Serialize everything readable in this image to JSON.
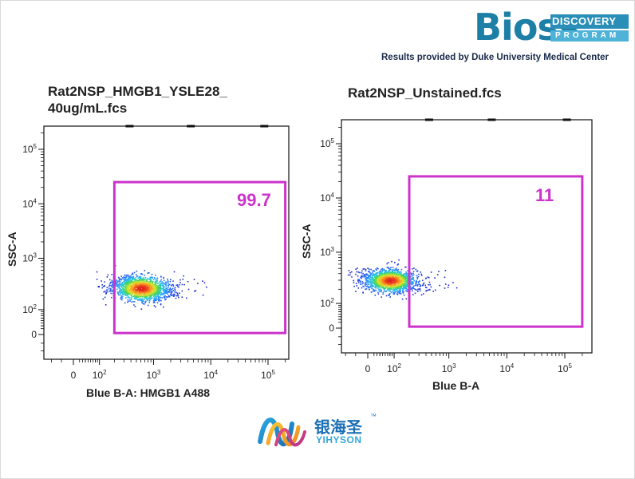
{
  "branding": {
    "bioss": {
      "word": "Bioss",
      "line1": "DISCOVERY",
      "line2": "PROGRAM",
      "colors": {
        "primary": "#1d7fa6",
        "accent": "#4fb3d8"
      }
    },
    "credit": "Results provided by Duke University Medical Center",
    "yihyson": {
      "cn": "银海圣",
      "tm": "™",
      "en": "YIHYSON",
      "color": "#1b6fb5"
    }
  },
  "chart_data": [
    {
      "type": "scatter",
      "title_line1": "Rat2NSP_HMGB1_YSLE28_",
      "title_line2": "40ug/mL.fcs",
      "xlabel": "Blue B-A: HMGB1 A488",
      "ylabel": "SSC-A",
      "x_scale": "biexponential",
      "y_scale": "biexponential",
      "x_ticks": [
        {
          "value": 0,
          "label": "0"
        },
        {
          "value": 100,
          "label": "10^2"
        },
        {
          "value": 1000,
          "label": "10^3"
        },
        {
          "value": 10000,
          "label": "10^4"
        },
        {
          "value": 100000,
          "label": "10^5"
        }
      ],
      "y_ticks": [
        {
          "value": 0,
          "label": "0"
        },
        {
          "value": 100,
          "label": "10^2"
        },
        {
          "value": 1000,
          "label": "10^3"
        },
        {
          "value": 10000,
          "label": "10^4"
        },
        {
          "value": 100000,
          "label": "10^5"
        }
      ],
      "population": {
        "x_center": 600,
        "y_center": 280,
        "x_spread_decades": 0.35,
        "y_spread_decades": 0.17
      },
      "gate": {
        "x_min": 200,
        "x_max": 200000,
        "y_min": 5,
        "y_max": 25000,
        "percent_label": "99.7",
        "color": "#cc33cc"
      }
    },
    {
      "type": "scatter",
      "title_line1": "Rat2NSP_Unstained.fcs",
      "xlabel": "Blue B-A",
      "ylabel": "SSC-A",
      "x_scale": "biexponential",
      "y_scale": "biexponential",
      "x_ticks": [
        {
          "value": 0,
          "label": "0"
        },
        {
          "value": 100,
          "label": "10^2"
        },
        {
          "value": 1000,
          "label": "10^3"
        },
        {
          "value": 10000,
          "label": "10^4"
        },
        {
          "value": 100000,
          "label": "10^5"
        }
      ],
      "y_ticks": [
        {
          "value": 0,
          "label": "0"
        },
        {
          "value": 100,
          "label": "10^2"
        },
        {
          "value": 1000,
          "label": "10^3"
        },
        {
          "value": 10000,
          "label": "10^4"
        },
        {
          "value": 100000,
          "label": "10^5"
        }
      ],
      "population": {
        "x_center": 80,
        "y_center": 300,
        "x_spread_decades": 0.32,
        "y_spread_decades": 0.15
      },
      "gate": {
        "x_min": 200,
        "x_max": 200000,
        "y_min": 5,
        "y_max": 25000,
        "percent_label": "11",
        "color": "#cc33cc"
      }
    }
  ]
}
